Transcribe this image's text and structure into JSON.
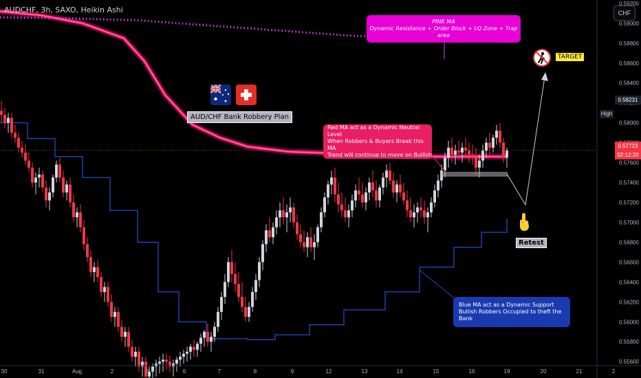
{
  "header": {
    "symbol": "AUDCHF, 3h, SAXO, Heikin Ashi",
    "currency_badge": "CHF"
  },
  "colors": {
    "bull": "#d1d4dc",
    "bear": "#f23645",
    "pink_ma": "#ff1f8e",
    "red_ma": "#ff1f6b",
    "blue_ma": "#2962ff",
    "dotted_ma": "#e040fb"
  },
  "chart_data": {
    "type": "candlestick",
    "y_axis": {
      "range": [
        0.5556,
        0.5922
      ],
      "tick_labels": [
        "0.59200",
        "0.59000",
        "0.58800",
        "0.58600",
        "0.58400",
        "0.58200",
        "0.58000",
        "0.57800",
        "0.57600",
        "0.57400",
        "0.57200",
        "0.57000",
        "0.56800",
        "0.56600",
        "0.56400",
        "0.56200",
        "0.56000",
        "0.55800",
        "0.55600"
      ],
      "ticks": [
        0.592,
        0.59,
        0.588,
        0.586,
        0.584,
        0.582,
        0.58,
        0.578,
        0.576,
        0.574,
        0.572,
        0.57,
        0.568,
        0.566,
        0.564,
        0.562,
        0.56,
        0.558,
        0.556
      ]
    },
    "x_axis": {
      "tick_labels": [
        "30",
        "31",
        "Aug",
        "2",
        "5",
        "6",
        "7",
        "8",
        "9",
        "12",
        "13",
        "14",
        "15",
        "16",
        "19",
        "20",
        "21",
        "2"
      ]
    },
    "current_price": {
      "value": "0.57723",
      "countdown": "02:12:20",
      "level": 0.57723
    },
    "high_price": {
      "label": "High",
      "value": "0.58231",
      "level": 0.58231
    },
    "pink_ma": [
      [
        0,
        0.5912
      ],
      [
        60,
        0.5908
      ],
      [
        120,
        0.59
      ],
      [
        180,
        0.5885
      ],
      [
        210,
        0.5862
      ],
      [
        240,
        0.5828
      ],
      [
        280,
        0.5798
      ],
      [
        320,
        0.5785
      ],
      [
        360,
        0.5776
      ],
      [
        420,
        0.5771
      ],
      [
        500,
        0.5769
      ],
      [
        560,
        0.5767
      ],
      [
        640,
        0.5766
      ],
      [
        737,
        0.5766
      ]
    ],
    "dotted_ma": [
      [
        0,
        0.5906
      ],
      [
        100,
        0.5905
      ],
      [
        200,
        0.5903
      ],
      [
        300,
        0.5898
      ],
      [
        400,
        0.5893
      ],
      [
        500,
        0.5888
      ],
      [
        600,
        0.5884
      ],
      [
        700,
        0.5882
      ],
      [
        740,
        0.5881
      ]
    ],
    "blue_ma": [
      [
        0,
        0.58
      ],
      [
        40,
        0.5784
      ],
      [
        80,
        0.5766
      ],
      [
        120,
        0.5745
      ],
      [
        160,
        0.5712
      ],
      [
        200,
        0.568
      ],
      [
        230,
        0.563
      ],
      [
        260,
        0.56
      ],
      [
        300,
        0.5583
      ],
      [
        360,
        0.5582
      ],
      [
        400,
        0.5587
      ],
      [
        450,
        0.5597
      ],
      [
        500,
        0.5612
      ],
      [
        560,
        0.563
      ],
      [
        610,
        0.5655
      ],
      [
        660,
        0.5675
      ],
      [
        700,
        0.569
      ],
      [
        737,
        0.5704
      ]
    ],
    "candles": [
      [
        0,
        0.5812,
        0.5822,
        0.58,
        0.5808
      ],
      [
        5,
        0.5808,
        0.5815,
        0.5795,
        0.58
      ],
      [
        10,
        0.58,
        0.581,
        0.579,
        0.5805
      ],
      [
        15,
        0.5805,
        0.581,
        0.5785,
        0.579
      ],
      [
        20,
        0.579,
        0.5798,
        0.578,
        0.5785
      ],
      [
        25,
        0.5785,
        0.579,
        0.577,
        0.5775
      ],
      [
        30,
        0.5775,
        0.5782,
        0.5765,
        0.577
      ],
      [
        35,
        0.577,
        0.5778,
        0.5758,
        0.5762
      ],
      [
        40,
        0.5762,
        0.577,
        0.575,
        0.5755
      ],
      [
        45,
        0.5755,
        0.576,
        0.5735,
        0.574
      ],
      [
        50,
        0.574,
        0.575,
        0.5728,
        0.5745
      ],
      [
        55,
        0.5745,
        0.5755,
        0.5735,
        0.5748
      ],
      [
        60,
        0.5748,
        0.5752,
        0.573,
        0.5735
      ],
      [
        65,
        0.5735,
        0.5742,
        0.5715,
        0.5722
      ],
      [
        70,
        0.5722,
        0.5735,
        0.5712,
        0.573
      ],
      [
        75,
        0.573,
        0.5748,
        0.5725,
        0.5745
      ],
      [
        80,
        0.5745,
        0.5762,
        0.574,
        0.5758
      ],
      [
        85,
        0.5758,
        0.5765,
        0.574,
        0.5745
      ],
      [
        90,
        0.5745,
        0.5752,
        0.5725,
        0.573
      ],
      [
        95,
        0.573,
        0.5742,
        0.5722,
        0.5738
      ],
      [
        100,
        0.5738,
        0.5745,
        0.5715,
        0.572
      ],
      [
        105,
        0.572,
        0.5728,
        0.57,
        0.5705
      ],
      [
        110,
        0.5705,
        0.5715,
        0.5695,
        0.571
      ],
      [
        115,
        0.571,
        0.5718,
        0.569,
        0.5695
      ],
      [
        120,
        0.5695,
        0.5702,
        0.5672,
        0.5678
      ],
      [
        125,
        0.5678,
        0.5685,
        0.566,
        0.5665
      ],
      [
        130,
        0.5665,
        0.5672,
        0.5645,
        0.565
      ],
      [
        135,
        0.565,
        0.566,
        0.564,
        0.5655
      ],
      [
        140,
        0.5655,
        0.5662,
        0.564,
        0.5645
      ],
      [
        145,
        0.5645,
        0.565,
        0.5625,
        0.563
      ],
      [
        150,
        0.563,
        0.564,
        0.562,
        0.5635
      ],
      [
        155,
        0.5635,
        0.564,
        0.5615,
        0.562
      ],
      [
        160,
        0.562,
        0.5628,
        0.56,
        0.5605
      ],
      [
        165,
        0.5605,
        0.5615,
        0.5595,
        0.561
      ],
      [
        170,
        0.561,
        0.5615,
        0.559,
        0.5595
      ],
      [
        175,
        0.5595,
        0.5602,
        0.558,
        0.5585
      ],
      [
        180,
        0.5585,
        0.5595,
        0.5575,
        0.559
      ],
      [
        185,
        0.559,
        0.5595,
        0.557,
        0.5575
      ],
      [
        190,
        0.5575,
        0.5582,
        0.556,
        0.5565
      ],
      [
        195,
        0.5565,
        0.5575,
        0.5555,
        0.557
      ],
      [
        200,
        0.557,
        0.5575,
        0.555,
        0.5555
      ],
      [
        205,
        0.5555,
        0.5565,
        0.5545,
        0.556
      ],
      [
        210,
        0.556,
        0.5565,
        0.554,
        0.5545
      ],
      [
        215,
        0.5545,
        0.5555,
        0.5535,
        0.555
      ],
      [
        220,
        0.555,
        0.5558,
        0.554,
        0.5555
      ],
      [
        225,
        0.5555,
        0.5562,
        0.5545,
        0.5558
      ],
      [
        230,
        0.5558,
        0.5565,
        0.5548,
        0.556
      ],
      [
        235,
        0.556,
        0.5568,
        0.555,
        0.5562
      ],
      [
        240,
        0.5562,
        0.5568,
        0.5552,
        0.556
      ],
      [
        245,
        0.556,
        0.5566,
        0.555,
        0.5555
      ],
      [
        250,
        0.5555,
        0.5562,
        0.5545,
        0.5558
      ],
      [
        255,
        0.5558,
        0.5565,
        0.555,
        0.5562
      ],
      [
        260,
        0.5562,
        0.557,
        0.5555,
        0.5565
      ],
      [
        265,
        0.5565,
        0.5572,
        0.5558,
        0.5568
      ],
      [
        270,
        0.5568,
        0.5575,
        0.556,
        0.557
      ],
      [
        275,
        0.557,
        0.5578,
        0.5562,
        0.5575
      ],
      [
        280,
        0.5575,
        0.5582,
        0.5565,
        0.5572
      ],
      [
        285,
        0.5572,
        0.558,
        0.5565,
        0.5578
      ],
      [
        290,
        0.5578,
        0.5588,
        0.557,
        0.5584
      ],
      [
        295,
        0.5584,
        0.5592,
        0.5575,
        0.559
      ],
      [
        300,
        0.559,
        0.5598,
        0.5575,
        0.558
      ],
      [
        305,
        0.558,
        0.559,
        0.557,
        0.5585
      ],
      [
        310,
        0.5585,
        0.56,
        0.558,
        0.5595
      ],
      [
        315,
        0.5595,
        0.5615,
        0.559,
        0.561
      ],
      [
        320,
        0.561,
        0.563,
        0.5602,
        0.5625
      ],
      [
        325,
        0.5625,
        0.5648,
        0.5618,
        0.564
      ],
      [
        330,
        0.564,
        0.5665,
        0.5635,
        0.566
      ],
      [
        335,
        0.566,
        0.5672,
        0.564,
        0.5648
      ],
      [
        340,
        0.5648,
        0.566,
        0.563,
        0.5638
      ],
      [
        345,
        0.5638,
        0.565,
        0.562,
        0.5625
      ],
      [
        350,
        0.5625,
        0.564,
        0.561,
        0.5615
      ],
      [
        355,
        0.5615,
        0.5625,
        0.56,
        0.5605
      ],
      [
        360,
        0.5605,
        0.562,
        0.56,
        0.5615
      ],
      [
        365,
        0.5615,
        0.5635,
        0.561,
        0.563
      ],
      [
        370,
        0.563,
        0.5648,
        0.5622,
        0.5642
      ],
      [
        375,
        0.5642,
        0.5665,
        0.5635,
        0.566
      ],
      [
        380,
        0.566,
        0.5682,
        0.5652,
        0.5678
      ],
      [
        385,
        0.5678,
        0.5698,
        0.567,
        0.5692
      ],
      [
        390,
        0.5692,
        0.5705,
        0.568,
        0.5685
      ],
      [
        395,
        0.5685,
        0.57,
        0.5678,
        0.5695
      ],
      [
        400,
        0.5695,
        0.5712,
        0.5688,
        0.5705
      ],
      [
        405,
        0.5705,
        0.572,
        0.5695,
        0.5712
      ],
      [
        410,
        0.5712,
        0.5725,
        0.5698,
        0.5705
      ],
      [
        415,
        0.5705,
        0.5718,
        0.569,
        0.571
      ],
      [
        420,
        0.571,
        0.5725,
        0.57,
        0.5715
      ],
      [
        425,
        0.5715,
        0.572,
        0.5695,
        0.57
      ],
      [
        430,
        0.57,
        0.5708,
        0.5682,
        0.5688
      ],
      [
        435,
        0.5688,
        0.5698,
        0.5675,
        0.568
      ],
      [
        440,
        0.568,
        0.5692,
        0.567,
        0.5675
      ],
      [
        445,
        0.5675,
        0.569,
        0.5665,
        0.5685
      ],
      [
        450,
        0.5685,
        0.5695,
        0.567,
        0.5675
      ],
      [
        455,
        0.5675,
        0.5688,
        0.5662,
        0.568
      ],
      [
        460,
        0.568,
        0.5698,
        0.5675,
        0.5695
      ],
      [
        465,
        0.5695,
        0.5715,
        0.569,
        0.571
      ],
      [
        470,
        0.571,
        0.573,
        0.5705,
        0.5725
      ],
      [
        475,
        0.5725,
        0.5742,
        0.5718,
        0.5738
      ],
      [
        480,
        0.5738,
        0.5752,
        0.5728,
        0.5745
      ],
      [
        485,
        0.5745,
        0.5755,
        0.572,
        0.5728
      ],
      [
        490,
        0.5728,
        0.574,
        0.571,
        0.5718
      ],
      [
        495,
        0.5718,
        0.573,
        0.5705,
        0.5712
      ],
      [
        500,
        0.5712,
        0.5725,
        0.57,
        0.5705
      ],
      [
        505,
        0.5705,
        0.5718,
        0.5695,
        0.5712
      ],
      [
        510,
        0.5712,
        0.5728,
        0.5705,
        0.5722
      ],
      [
        515,
        0.5722,
        0.5738,
        0.5715,
        0.5732
      ],
      [
        520,
        0.5732,
        0.5745,
        0.5722,
        0.5728
      ],
      [
        525,
        0.5728,
        0.574,
        0.5715,
        0.572
      ],
      [
        530,
        0.572,
        0.5735,
        0.5712,
        0.573
      ],
      [
        535,
        0.573,
        0.5745,
        0.5722,
        0.574
      ],
      [
        540,
        0.574,
        0.5752,
        0.5725,
        0.5732
      ],
      [
        545,
        0.5732,
        0.5742,
        0.5715,
        0.5722
      ],
      [
        550,
        0.5722,
        0.5738,
        0.5715,
        0.5735
      ],
      [
        555,
        0.5735,
        0.575,
        0.5728,
        0.5745
      ],
      [
        560,
        0.5745,
        0.5758,
        0.5735,
        0.5752
      ],
      [
        565,
        0.5752,
        0.576,
        0.5738,
        0.5742
      ],
      [
        570,
        0.5742,
        0.575,
        0.5725,
        0.573
      ],
      [
        575,
        0.573,
        0.5742,
        0.572,
        0.5738
      ],
      [
        580,
        0.5738,
        0.5748,
        0.5725,
        0.573
      ],
      [
        585,
        0.573,
        0.574,
        0.5718,
        0.5722
      ],
      [
        590,
        0.5722,
        0.5732,
        0.5705,
        0.5712
      ],
      [
        595,
        0.5712,
        0.5725,
        0.57,
        0.5705
      ],
      [
        600,
        0.5705,
        0.5718,
        0.5695,
        0.571
      ],
      [
        605,
        0.571,
        0.572,
        0.57,
        0.5715
      ],
      [
        610,
        0.5715,
        0.5725,
        0.5705,
        0.5712
      ],
      [
        615,
        0.5712,
        0.5722,
        0.5698,
        0.5705
      ],
      [
        620,
        0.5705,
        0.5715,
        0.569,
        0.571
      ],
      [
        625,
        0.571,
        0.5725,
        0.5705,
        0.572
      ],
      [
        630,
        0.572,
        0.5738,
        0.5715,
        0.5732
      ],
      [
        635,
        0.5732,
        0.5748,
        0.5725,
        0.5742
      ],
      [
        640,
        0.5742,
        0.5758,
        0.5735,
        0.5752
      ],
      [
        645,
        0.5752,
        0.577,
        0.5745,
        0.5765
      ],
      [
        650,
        0.5765,
        0.5782,
        0.5755,
        0.5775
      ],
      [
        655,
        0.5775,
        0.5785,
        0.576,
        0.5768
      ],
      [
        660,
        0.5768,
        0.5778,
        0.5758,
        0.5772
      ],
      [
        665,
        0.5772,
        0.5782,
        0.5762,
        0.577
      ],
      [
        670,
        0.577,
        0.578,
        0.576,
        0.5775
      ],
      [
        675,
        0.5775,
        0.5785,
        0.5765,
        0.5772
      ],
      [
        680,
        0.5772,
        0.578,
        0.576,
        0.5768
      ],
      [
        685,
        0.5768,
        0.5778,
        0.5758,
        0.5765
      ],
      [
        690,
        0.5765,
        0.5775,
        0.5748,
        0.5755
      ],
      [
        695,
        0.5755,
        0.5768,
        0.5745,
        0.5762
      ],
      [
        700,
        0.5762,
        0.5778,
        0.5755,
        0.5772
      ],
      [
        705,
        0.5772,
        0.5785,
        0.5765,
        0.578
      ],
      [
        710,
        0.578,
        0.579,
        0.5768,
        0.5775
      ],
      [
        715,
        0.5775,
        0.5788,
        0.577,
        0.5785
      ],
      [
        720,
        0.5785,
        0.5798,
        0.5778,
        0.5792
      ],
      [
        725,
        0.5792,
        0.58,
        0.5775,
        0.578
      ],
      [
        730,
        0.578,
        0.5785,
        0.576,
        0.5765
      ],
      [
        735,
        0.5765,
        0.5775,
        0.5755,
        0.5772
      ]
    ]
  },
  "annotations": {
    "pink_note_title": "PINK MA",
    "pink_note_body": "Dynamic Resistance + Order Block + LQ Zone + Trap area",
    "red_note_line1": "Red MA act as a Dynamic Neutral Level",
    "red_note_line2": "When Robbers & Buyers Break this MA",
    "red_note_line3": "Trend will continue to move on Bullish",
    "blue_note_line1": "Blue MA act as a Dynamic Support",
    "blue_note_line2": "Bullish Robbers Occupied to theft the Bank",
    "plan_label": "AUD/CHF Bank Robbery Plan",
    "retest_label": "Retest",
    "target_label": "TARGET"
  }
}
